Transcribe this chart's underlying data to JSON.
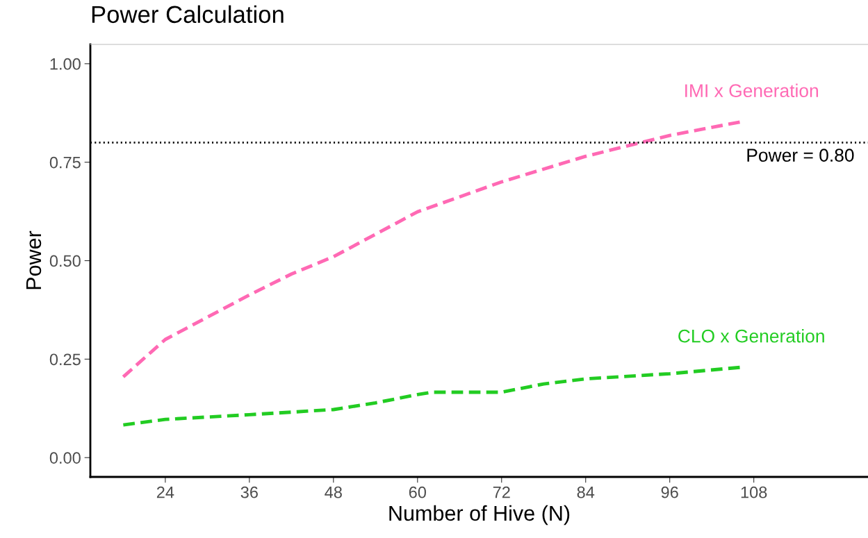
{
  "chart_data": {
    "type": "line",
    "title": "Power Calculation",
    "xlabel": "Number of Hive (N)",
    "ylabel": "Power",
    "xlim": [
      13.3,
      124.3
    ],
    "ylim": [
      -0.049,
      1.049
    ],
    "xticks": [
      24,
      36,
      48,
      60,
      72,
      84,
      96,
      108
    ],
    "yticks": [
      {
        "value": 0,
        "label": "0.00"
      },
      {
        "value": 0.25,
        "label": "0.25"
      },
      {
        "value": 0.5,
        "label": "0.50"
      },
      {
        "value": 0.75,
        "label": "0.75"
      },
      {
        "value": 1,
        "label": "1.00"
      }
    ],
    "grid": false,
    "legend": false,
    "line_style": "dashed",
    "marker": "none",
    "x": [
      18,
      24,
      36,
      42,
      48,
      60,
      72,
      84,
      96,
      106
    ],
    "series": [
      {
        "name": "IMI x Generation",
        "color": "#ff69b4",
        "values": [
          0.205,
          0.3,
          0.413,
          0.466,
          0.51,
          0.624,
          0.7,
          0.765,
          0.818,
          0.852
        ]
      },
      {
        "name": "CLO x Generation",
        "color": "#22cc22",
        "x": [
          18,
          24,
          36,
          48,
          54,
          60,
          62,
          72,
          78,
          84,
          96,
          106
        ],
        "values": [
          0.083,
          0.097,
          0.109,
          0.122,
          0.139,
          0.16,
          0.166,
          0.166,
          0.187,
          0.2,
          0.213,
          0.229
        ]
      }
    ],
    "ref_lines": [
      {
        "axis": "y",
        "value": 0.8,
        "label": "Power = 0.80",
        "color": "#000000",
        "line_style": "dotted"
      }
    ]
  }
}
